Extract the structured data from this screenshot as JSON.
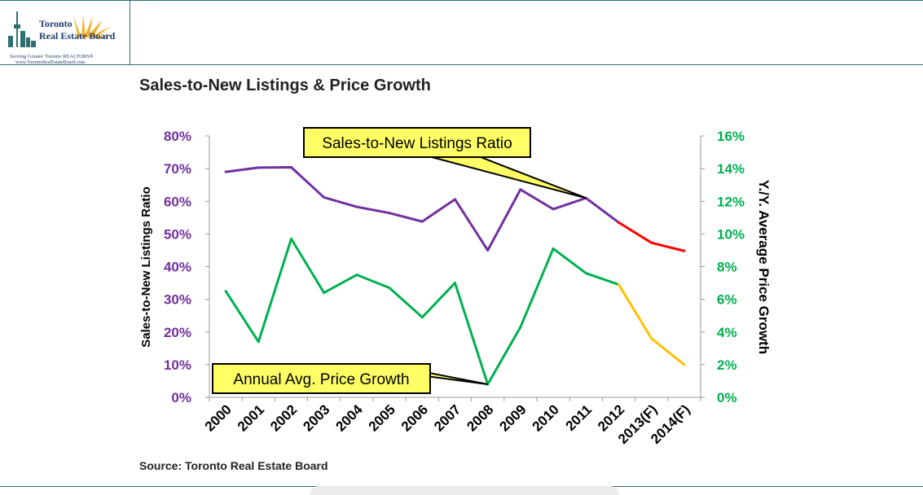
{
  "logo": {
    "line1": "Toronto",
    "line2": "Real Estate Board",
    "tagline": "Serving Greater Toronto REALTORS®",
    "url": "www.TorontoRealEstateBoard.com"
  },
  "page": {
    "title": "Sales-to-New Listings & Price Growth",
    "source": "Source: Toronto Real Estate Board"
  },
  "chart_data": {
    "type": "line",
    "title": "Sales-to-New Listings & Price Growth",
    "categories": [
      "2000",
      "2001",
      "2002",
      "2003",
      "2004",
      "2005",
      "2006",
      "2007",
      "2008",
      "2009",
      "2010",
      "2011",
      "2012",
      "2013(F)",
      "2014(F)"
    ],
    "ylabel": "Sales-to-New Listings Ratio",
    "y2label": "Y./Y. Average Price Growth",
    "ylim": [
      0,
      80
    ],
    "y2lim": [
      0,
      16
    ],
    "yticks": [
      "0%",
      "10%",
      "20%",
      "30%",
      "40%",
      "50%",
      "60%",
      "70%",
      "80%"
    ],
    "y2ticks": [
      "0%",
      "2%",
      "4%",
      "6%",
      "8%",
      "10%",
      "12%",
      "14%",
      "16%"
    ],
    "grid": false,
    "series": [
      {
        "axis": "left",
        "values": [
          69.0,
          70.3,
          70.4,
          61.2,
          58.3,
          56.4,
          53.8,
          60.6,
          45.0,
          63.6,
          57.6,
          61.0,
          53.5,
          47.3,
          44.8
        ],
        "color": "#7030a0",
        "forecast_color": "#ff0000",
        "forecast_from_index": 12
      },
      {
        "axis": "right",
        "values": [
          6.5,
          3.4,
          9.7,
          6.4,
          7.5,
          6.7,
          4.9,
          7.0,
          0.8,
          4.3,
          9.1,
          7.6,
          6.9,
          3.6,
          2.0
        ],
        "color": "#00b050",
        "forecast_color": "#ffc000",
        "forecast_from_index": 12
      }
    ],
    "annotations": [
      {
        "text": "Sales-to-New Listings Ratio",
        "series": 0,
        "target_index": 11
      },
      {
        "text": "Annual Avg. Price Growth",
        "series": 1,
        "target_index": 8
      }
    ]
  }
}
